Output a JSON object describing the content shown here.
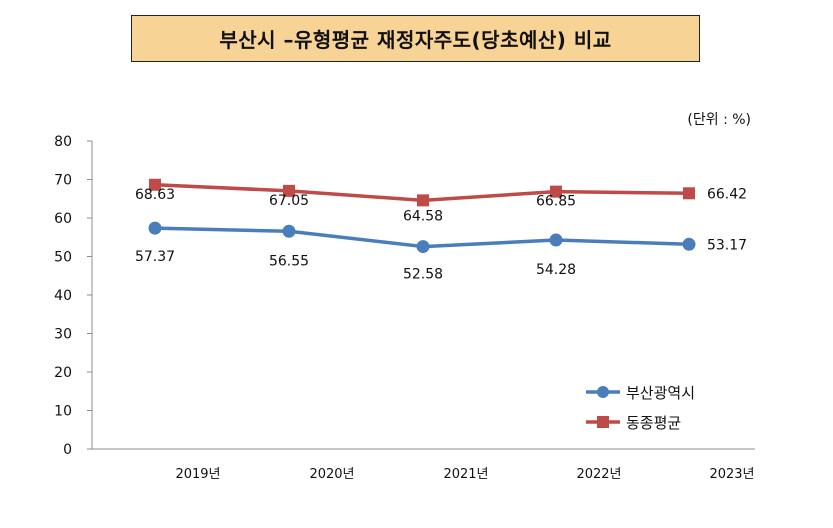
{
  "chart_data": {
    "type": "line",
    "title": "부산시 –유형평균  재정자주도(당초예산) 비교",
    "unit_label": "(단위 : %)",
    "categories": [
      "2019년",
      "2020년",
      "2021년",
      "2022년",
      "2023년"
    ],
    "ylim": [
      0,
      80
    ],
    "yticks": [
      0,
      10,
      20,
      30,
      40,
      50,
      60,
      70,
      80
    ],
    "grid": false,
    "legend_position": "bottom-right",
    "series": [
      {
        "name": "부산광역시",
        "values": [
          57.37,
          56.55,
          52.58,
          54.28,
          53.17
        ],
        "labels": [
          "57.37",
          "56.55",
          "52.58",
          "54.28",
          "53.17"
        ],
        "color": "#4a7ebb",
        "marker": "circle"
      },
      {
        "name": "동종평균",
        "values": [
          68.63,
          67.05,
          64.58,
          66.85,
          66.42
        ],
        "labels": [
          "68.63",
          "67.05",
          "64.58",
          "66.85",
          "66.42"
        ],
        "color": "#be4b48",
        "marker": "square"
      }
    ]
  }
}
